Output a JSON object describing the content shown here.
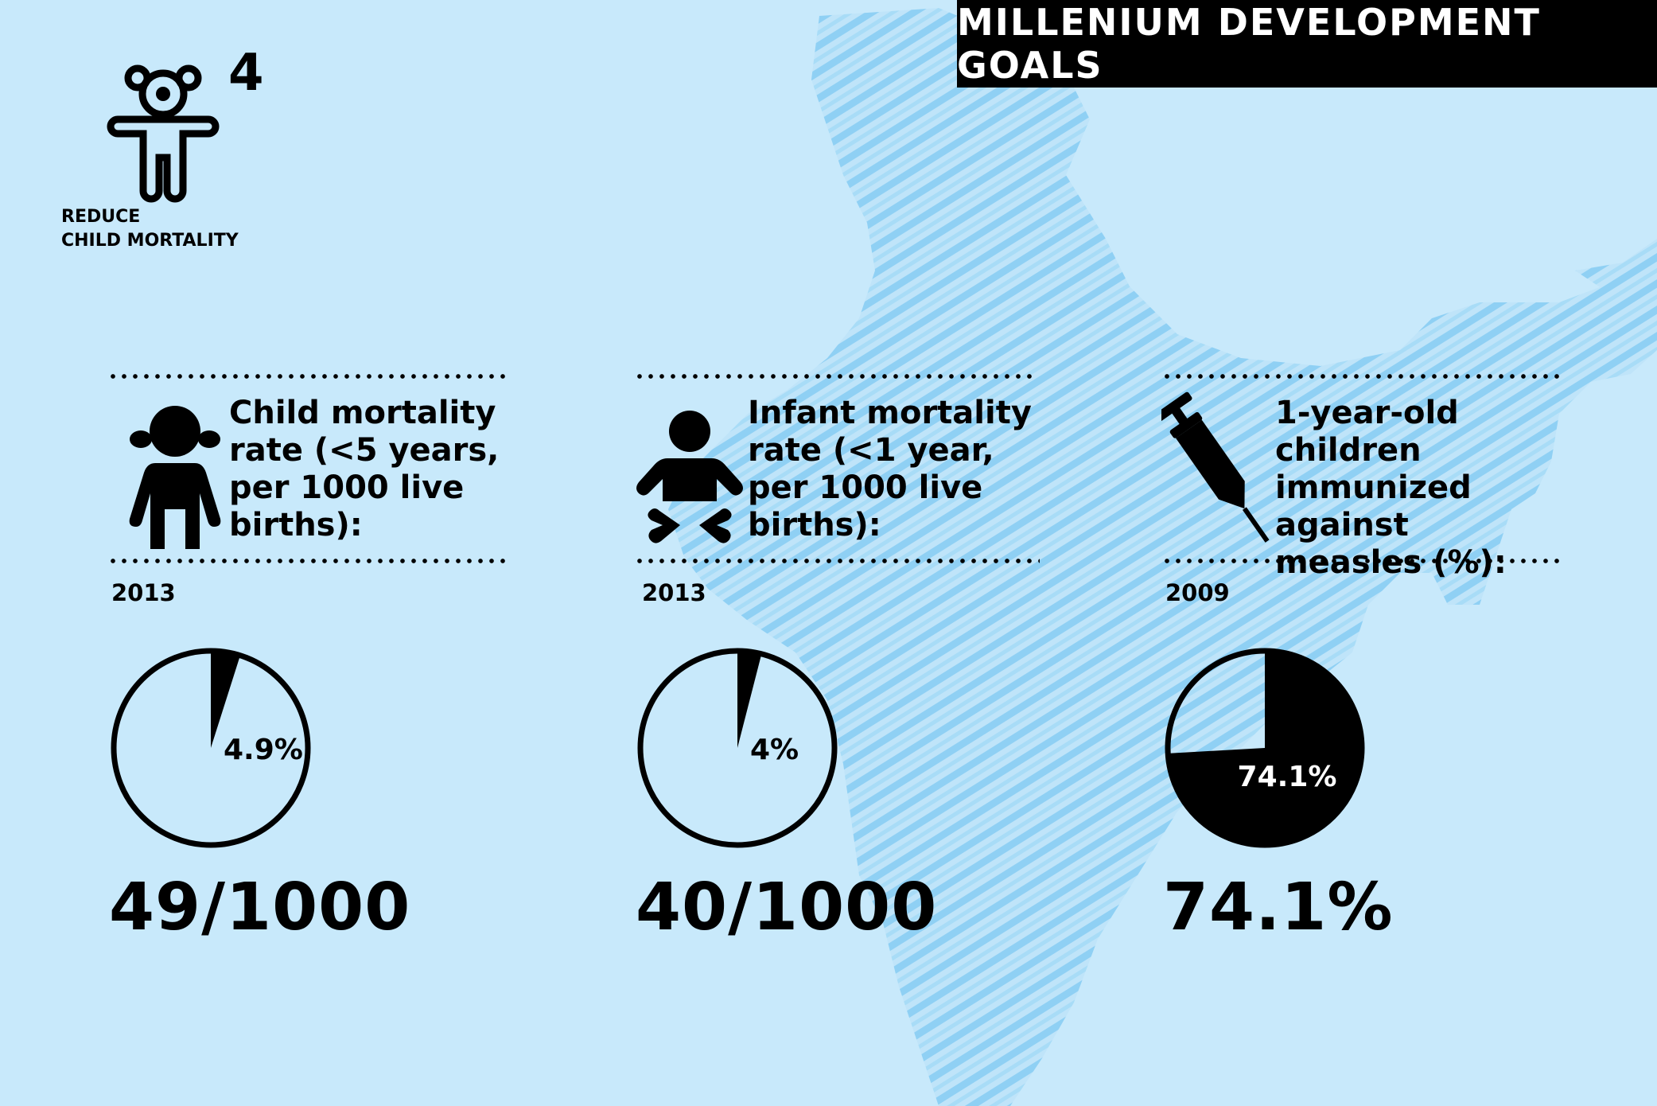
{
  "header": {
    "title": "MILLENIUM DEVELOPMENT GOALS"
  },
  "goal": {
    "number": "4",
    "label_line1": "REDUCE",
    "label_line2": "CHILD MORTALITY",
    "icon": "child-icon"
  },
  "colors": {
    "background": "#c8e9fb",
    "map": "#9fd6f5",
    "ink": "#000000",
    "banner_text": "#ffffff"
  },
  "panels": [
    {
      "icon": "girl-icon",
      "title_lines": [
        "Child mortality",
        "rate (<5 years,",
        "per 1000 live",
        "births):"
      ],
      "year": "2013",
      "pie_label": "4.9%",
      "big_value": "49/1000"
    },
    {
      "icon": "baby-icon",
      "title_lines": [
        "Infant mortality",
        "rate (<1 year,",
        "per 1000 live",
        "births):"
      ],
      "year": "2013",
      "pie_label": "4%",
      "big_value": "40/1000"
    },
    {
      "icon": "syringe-icon",
      "title_lines": [
        "1-year-old",
        "children",
        "immunized against",
        "measles (%):"
      ],
      "year": "2009",
      "pie_label": "74.1%",
      "big_value": "74.1%"
    }
  ],
  "chart_data": [
    {
      "type": "pie",
      "slices": [
        {
          "value": 4.9
        },
        {
          "value": 95.1
        }
      ],
      "labels": [
        "4.9%"
      ]
    },
    {
      "type": "pie",
      "slices": [
        {
          "value": 4.0
        },
        {
          "value": 96.0
        }
      ],
      "labels": [
        "4%"
      ]
    },
    {
      "type": "pie",
      "slices": [
        {
          "value": 74.1
        },
        {
          "value": 25.9
        }
      ],
      "labels": [
        "74.1%"
      ]
    }
  ]
}
